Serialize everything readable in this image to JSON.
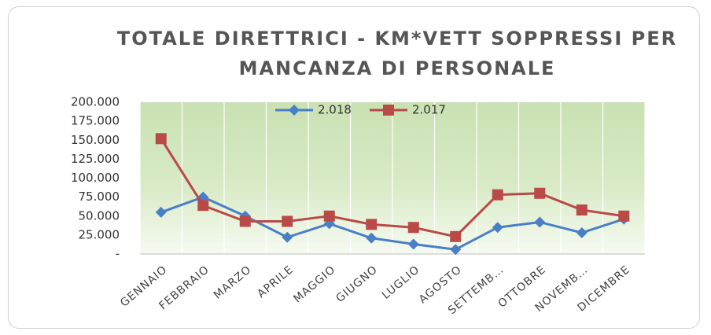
{
  "chart_data": {
    "type": "line",
    "title": "TOTALE DIRETTRICI - KM*VETT SOPPRESSI PER MANCANZA DI PERSONALE",
    "categories": [
      "GENNAIO",
      "FEBBRAIO",
      "MARZO",
      "APRILE",
      "MAGGIO",
      "GIUGNO",
      "LUGLIO",
      "AGOSTO",
      "SETTEMB…",
      "OTTOBRE",
      "NOVEMB…",
      "DICEMBRE"
    ],
    "series": [
      {
        "name": "2.018",
        "color": "#4a7fc8",
        "marker": "diamond",
        "values": [
          55000,
          75000,
          50000,
          22000,
          40000,
          21000,
          13000,
          6000,
          35000,
          42000,
          28000,
          46000
        ]
      },
      {
        "name": "2.017",
        "color": "#b94a48",
        "marker": "square",
        "values": [
          152000,
          64000,
          43000,
          43000,
          50000,
          39000,
          35000,
          23000,
          78000,
          80000,
          58000,
          50000
        ]
      }
    ],
    "ylim": [
      0,
      200000
    ],
    "yticks": [
      {
        "value": 0,
        "label": "-"
      },
      {
        "value": 25000,
        "label": "25.000"
      },
      {
        "value": 50000,
        "label": "50.000"
      },
      {
        "value": 75000,
        "label": "75.000"
      },
      {
        "value": 100000,
        "label": "100.000"
      },
      {
        "value": 125000,
        "label": "125.000"
      },
      {
        "value": 150000,
        "label": "150.000"
      },
      {
        "value": 175000,
        "label": "175.000"
      },
      {
        "value": 200000,
        "label": "200.000"
      }
    ],
    "grid": false,
    "legend": "top"
  }
}
